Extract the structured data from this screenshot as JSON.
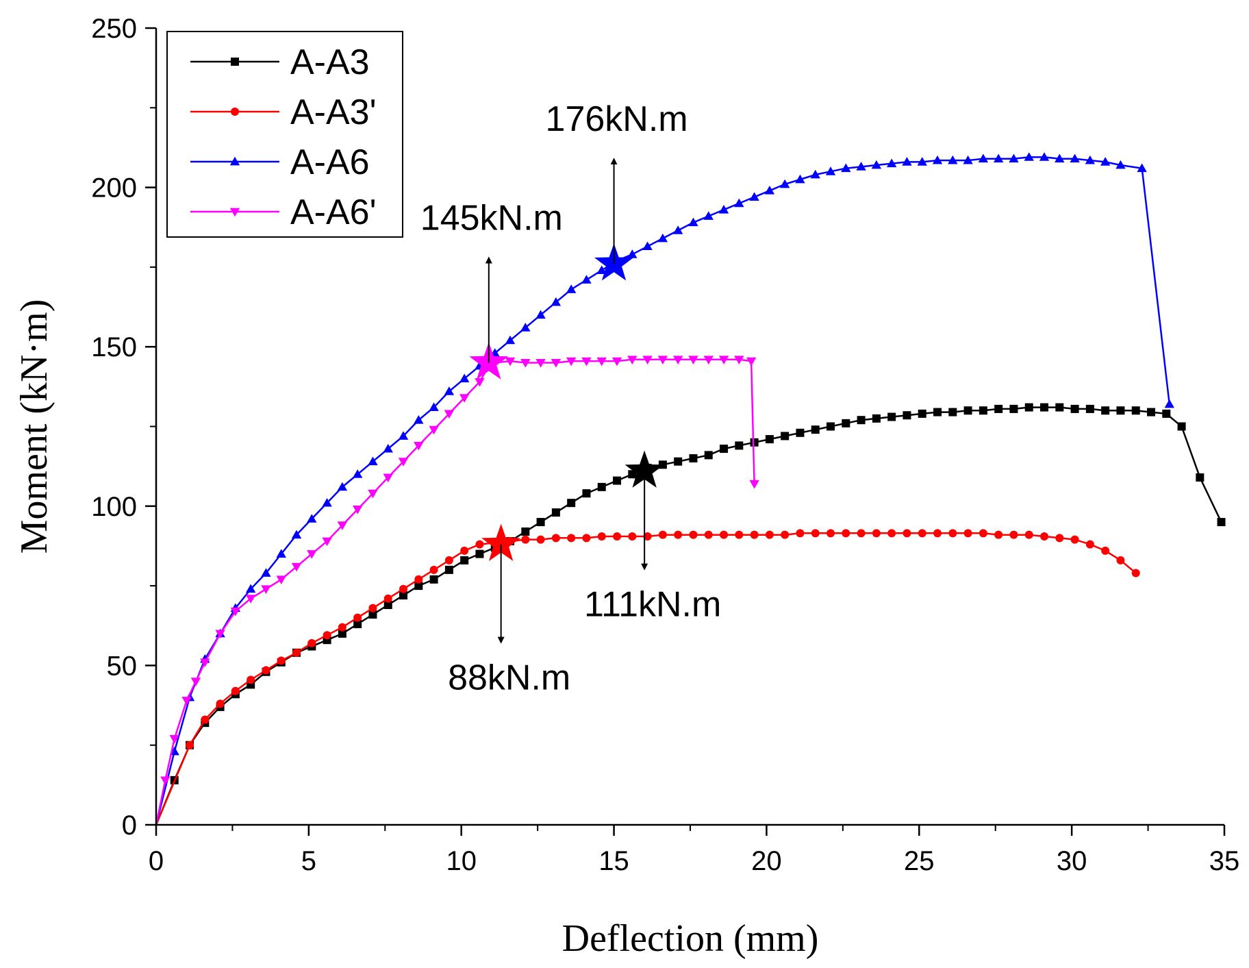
{
  "chart_data": {
    "type": "line",
    "title": "",
    "xlabel": "Deflection (mm)",
    "ylabel": "Moment (kN·m)",
    "xlim": [
      0,
      35
    ],
    "ylim": [
      0,
      250
    ],
    "x_ticks": [
      0,
      5,
      10,
      15,
      20,
      25,
      30,
      35
    ],
    "y_ticks": [
      0,
      50,
      100,
      150,
      200,
      250
    ],
    "grid": false,
    "legend_position": "top-left",
    "series": [
      {
        "name": "A-A3",
        "color": "#000000",
        "marker": "square",
        "points": [
          [
            0,
            0
          ],
          [
            0.6,
            14
          ],
          [
            1.1,
            25
          ],
          [
            1.6,
            32
          ],
          [
            2.1,
            37
          ],
          [
            2.6,
            41
          ],
          [
            3.1,
            44
          ],
          [
            3.6,
            48
          ],
          [
            4.1,
            51
          ],
          [
            4.6,
            54
          ],
          [
            5.1,
            56
          ],
          [
            5.6,
            58
          ],
          [
            6.1,
            60
          ],
          [
            6.6,
            63
          ],
          [
            7.1,
            66
          ],
          [
            7.6,
            69
          ],
          [
            8.1,
            72
          ],
          [
            8.6,
            75
          ],
          [
            9.1,
            77
          ],
          [
            9.6,
            80
          ],
          [
            10.1,
            83
          ],
          [
            10.6,
            85
          ],
          [
            11.1,
            87
          ],
          [
            11.6,
            89
          ],
          [
            12.1,
            92
          ],
          [
            12.6,
            95
          ],
          [
            13.1,
            98
          ],
          [
            13.6,
            101
          ],
          [
            14.1,
            104
          ],
          [
            14.6,
            106
          ],
          [
            15.1,
            108
          ],
          [
            15.6,
            110
          ],
          [
            16.1,
            112
          ],
          [
            16.6,
            113
          ],
          [
            17.1,
            114
          ],
          [
            17.6,
            115
          ],
          [
            18.1,
            116
          ],
          [
            18.6,
            118
          ],
          [
            19.1,
            119
          ],
          [
            19.6,
            120
          ],
          [
            20.1,
            121
          ],
          [
            20.6,
            122
          ],
          [
            21.1,
            123
          ],
          [
            21.6,
            124
          ],
          [
            22.1,
            125
          ],
          [
            22.6,
            126
          ],
          [
            23.1,
            127
          ],
          [
            23.6,
            127.5
          ],
          [
            24.1,
            128
          ],
          [
            24.6,
            128.5
          ],
          [
            25.1,
            129
          ],
          [
            25.6,
            129.5
          ],
          [
            26.1,
            129.5
          ],
          [
            26.6,
            130
          ],
          [
            27.1,
            130
          ],
          [
            27.6,
            130.5
          ],
          [
            28.1,
            130.5
          ],
          [
            28.6,
            131
          ],
          [
            29.1,
            131
          ],
          [
            29.6,
            131
          ],
          [
            30.1,
            130.5
          ],
          [
            30.6,
            130.5
          ],
          [
            31.1,
            130
          ],
          [
            31.6,
            130
          ],
          [
            32.1,
            130
          ],
          [
            32.6,
            129.5
          ],
          [
            33.1,
            129
          ],
          [
            33.6,
            125
          ],
          [
            34.2,
            109
          ],
          [
            34.9,
            95
          ]
        ]
      },
      {
        "name": "A-A3'",
        "color": "#ff0000",
        "marker": "circle",
        "points": [
          [
            0,
            0
          ],
          [
            1.1,
            25
          ],
          [
            1.6,
            33
          ],
          [
            2.1,
            38
          ],
          [
            2.6,
            42
          ],
          [
            3.1,
            45.5
          ],
          [
            3.6,
            48.5
          ],
          [
            4.1,
            51.5
          ],
          [
            4.6,
            54
          ],
          [
            5.1,
            57
          ],
          [
            5.6,
            59.5
          ],
          [
            6.1,
            62
          ],
          [
            6.6,
            65
          ],
          [
            7.1,
            68
          ],
          [
            7.6,
            71
          ],
          [
            8.1,
            74
          ],
          [
            8.6,
            77
          ],
          [
            9.1,
            80
          ],
          [
            9.6,
            83
          ],
          [
            10.1,
            86
          ],
          [
            10.6,
            88
          ],
          [
            11.1,
            88.5
          ],
          [
            11.6,
            89
          ],
          [
            12.1,
            89.5
          ],
          [
            12.6,
            89.5
          ],
          [
            13.1,
            90
          ],
          [
            13.6,
            90
          ],
          [
            14.1,
            90
          ],
          [
            14.6,
            90.5
          ],
          [
            15.1,
            90.5
          ],
          [
            15.6,
            90.5
          ],
          [
            16.1,
            90.5
          ],
          [
            16.6,
            91
          ],
          [
            17.1,
            91
          ],
          [
            17.6,
            91
          ],
          [
            18.1,
            91
          ],
          [
            18.6,
            91
          ],
          [
            19.1,
            91
          ],
          [
            19.6,
            91
          ],
          [
            20.1,
            91
          ],
          [
            20.6,
            91
          ],
          [
            21.1,
            91.5
          ],
          [
            21.6,
            91.5
          ],
          [
            22.1,
            91.5
          ],
          [
            22.6,
            91.5
          ],
          [
            23.1,
            91.5
          ],
          [
            23.6,
            91.5
          ],
          [
            24.1,
            91.5
          ],
          [
            24.6,
            91.5
          ],
          [
            25.1,
            91.5
          ],
          [
            25.6,
            91.5
          ],
          [
            26.1,
            91.5
          ],
          [
            26.6,
            91.5
          ],
          [
            27.1,
            91.5
          ],
          [
            27.6,
            91
          ],
          [
            28.1,
            91
          ],
          [
            28.6,
            91
          ],
          [
            29.1,
            90.5
          ],
          [
            29.6,
            90
          ],
          [
            30.1,
            89.5
          ],
          [
            30.6,
            88
          ],
          [
            31.1,
            86
          ],
          [
            31.6,
            83
          ],
          [
            32.1,
            79
          ]
        ]
      },
      {
        "name": "A-A6",
        "color": "#0000ff",
        "marker": "triangle-up",
        "points": [
          [
            0,
            0
          ],
          [
            0.6,
            23
          ],
          [
            1.1,
            40
          ],
          [
            1.6,
            52
          ],
          [
            2.1,
            60
          ],
          [
            2.6,
            68
          ],
          [
            3.1,
            74
          ],
          [
            3.6,
            79
          ],
          [
            4.1,
            85
          ],
          [
            4.6,
            91
          ],
          [
            5.1,
            96
          ],
          [
            5.6,
            101
          ],
          [
            6.1,
            106
          ],
          [
            6.6,
            110
          ],
          [
            7.1,
            114
          ],
          [
            7.6,
            118
          ],
          [
            8.1,
            122
          ],
          [
            8.6,
            127
          ],
          [
            9.1,
            131
          ],
          [
            9.6,
            136
          ],
          [
            10.1,
            140
          ],
          [
            10.6,
            144
          ],
          [
            11.1,
            148
          ],
          [
            11.6,
            152
          ],
          [
            12.1,
            156
          ],
          [
            12.6,
            160
          ],
          [
            13.1,
            164
          ],
          [
            13.6,
            168
          ],
          [
            14.1,
            171
          ],
          [
            14.6,
            174
          ],
          [
            15.1,
            177
          ],
          [
            15.6,
            179
          ],
          [
            16.1,
            181.5
          ],
          [
            16.6,
            184
          ],
          [
            17.1,
            186.5
          ],
          [
            17.6,
            189
          ],
          [
            18.1,
            191
          ],
          [
            18.6,
            193
          ],
          [
            19.1,
            195
          ],
          [
            19.6,
            197
          ],
          [
            20.1,
            199
          ],
          [
            20.6,
            201
          ],
          [
            21.1,
            202.5
          ],
          [
            21.6,
            204
          ],
          [
            22.1,
            205
          ],
          [
            22.6,
            206
          ],
          [
            23.1,
            206.5
          ],
          [
            23.6,
            207
          ],
          [
            24.1,
            207.5
          ],
          [
            24.6,
            208
          ],
          [
            25.1,
            208
          ],
          [
            25.6,
            208.5
          ],
          [
            26.1,
            208.5
          ],
          [
            26.6,
            208.5
          ],
          [
            27.1,
            209
          ],
          [
            27.6,
            209
          ],
          [
            28.1,
            209
          ],
          [
            28.6,
            209.5
          ],
          [
            29.1,
            209.5
          ],
          [
            29.6,
            209
          ],
          [
            30.1,
            209
          ],
          [
            30.6,
            208.5
          ],
          [
            31.1,
            208
          ],
          [
            31.6,
            207
          ],
          [
            32.3,
            206
          ],
          [
            33.2,
            132
          ]
        ]
      },
      {
        "name": "A-A6'",
        "color": "#ff00ff",
        "marker": "triangle-down",
        "points": [
          [
            0,
            0
          ],
          [
            0.3,
            14
          ],
          [
            0.6,
            27
          ],
          [
            1.0,
            39
          ],
          [
            1.3,
            45
          ],
          [
            1.6,
            51
          ],
          [
            2.1,
            60
          ],
          [
            2.6,
            67
          ],
          [
            3.1,
            71
          ],
          [
            3.6,
            74
          ],
          [
            4.1,
            77
          ],
          [
            4.6,
            81
          ],
          [
            5.1,
            85
          ],
          [
            5.6,
            89
          ],
          [
            6.1,
            94
          ],
          [
            6.6,
            99
          ],
          [
            7.1,
            104
          ],
          [
            7.6,
            109
          ],
          [
            8.1,
            114
          ],
          [
            8.6,
            119
          ],
          [
            9.1,
            124
          ],
          [
            9.6,
            129
          ],
          [
            10.1,
            134
          ],
          [
            10.6,
            139
          ],
          [
            10.9,
            144
          ],
          [
            11.1,
            145
          ],
          [
            11.6,
            145.5
          ],
          [
            12.1,
            145
          ],
          [
            12.6,
            145
          ],
          [
            13.1,
            145
          ],
          [
            13.6,
            145.5
          ],
          [
            14.1,
            145.5
          ],
          [
            14.6,
            145.5
          ],
          [
            15.1,
            145.5
          ],
          [
            15.6,
            146
          ],
          [
            16.1,
            146
          ],
          [
            16.6,
            146
          ],
          [
            17.1,
            146
          ],
          [
            17.6,
            146
          ],
          [
            18.1,
            146
          ],
          [
            18.6,
            146
          ],
          [
            19.1,
            146
          ],
          [
            19.5,
            145.5
          ],
          [
            19.6,
            107
          ]
        ]
      }
    ],
    "annotations": [
      {
        "series": "A-A6",
        "x": 15.0,
        "y": 176,
        "label": "176kN.m",
        "arrow": "up"
      },
      {
        "series": "A-A6'",
        "x": 10.9,
        "y": 145,
        "label": "145kN.m",
        "arrow": "up"
      },
      {
        "series": "A-A3",
        "x": 16.0,
        "y": 111,
        "label": "111kN.m",
        "arrow": "down"
      },
      {
        "series": "A-A3'",
        "x": 11.3,
        "y": 88,
        "label": "88kN.m",
        "arrow": "down"
      }
    ]
  }
}
